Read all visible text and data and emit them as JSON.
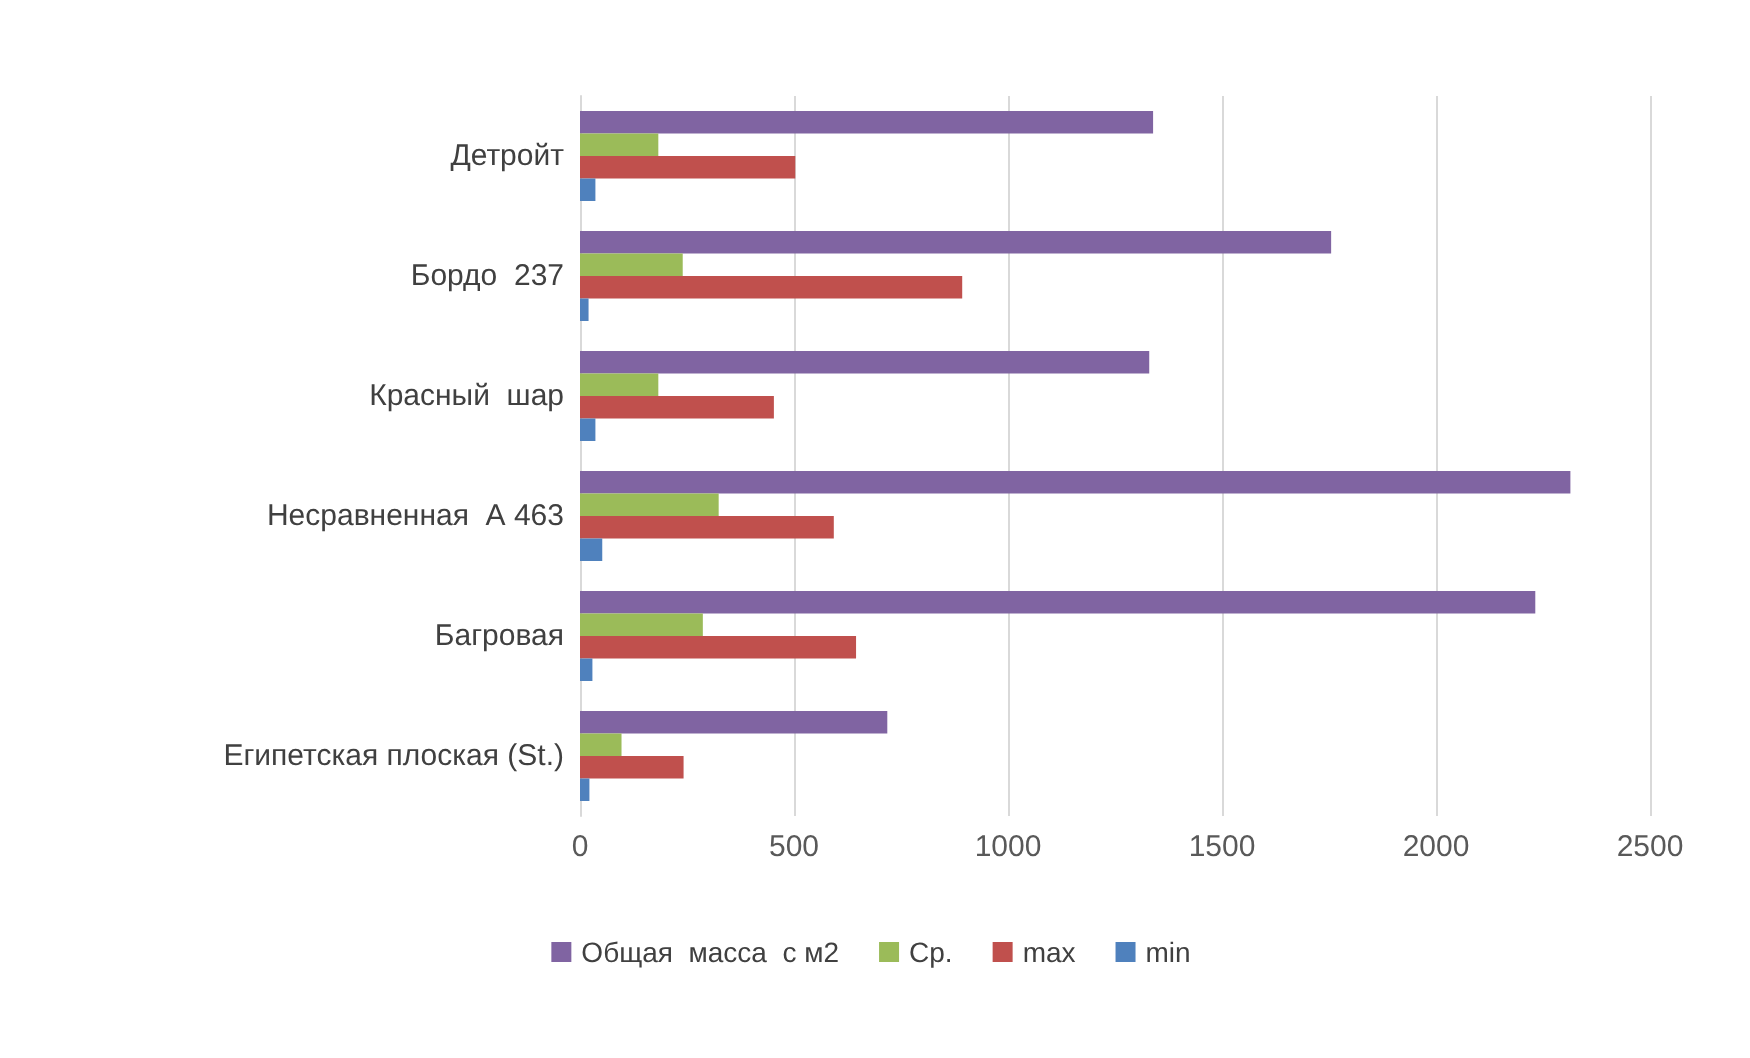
{
  "chart_data": {
    "type": "bar",
    "orientation": "horizontal",
    "categories": [
      "Детройт",
      "Бордо  237",
      "Красный  шар",
      "Несравненная  А 463",
      "Багровая",
      "Египетская плоская (St.)"
    ],
    "series": [
      {
        "name": "Общая  масса  с м2",
        "color": "#8064a2",
        "values": [
          1339,
          1755,
          1330,
          2314,
          2232,
          718
        ]
      },
      {
        "name": "Ср.",
        "color": "#9bbb59",
        "values": [
          183,
          240,
          183,
          324,
          287,
          97
        ]
      },
      {
        "name": "max",
        "color": "#c0504d",
        "values": [
          503,
          893,
          453,
          593,
          645,
          242
        ]
      },
      {
        "name": "min",
        "color": "#4f81bd",
        "values": [
          36,
          20,
          36,
          52,
          29,
          22
        ]
      }
    ],
    "xlim": [
      0,
      2500
    ],
    "xticks": [
      0,
      500,
      1000,
      1500,
      2000,
      2500
    ],
    "grid": "x",
    "legend": "bottom"
  }
}
